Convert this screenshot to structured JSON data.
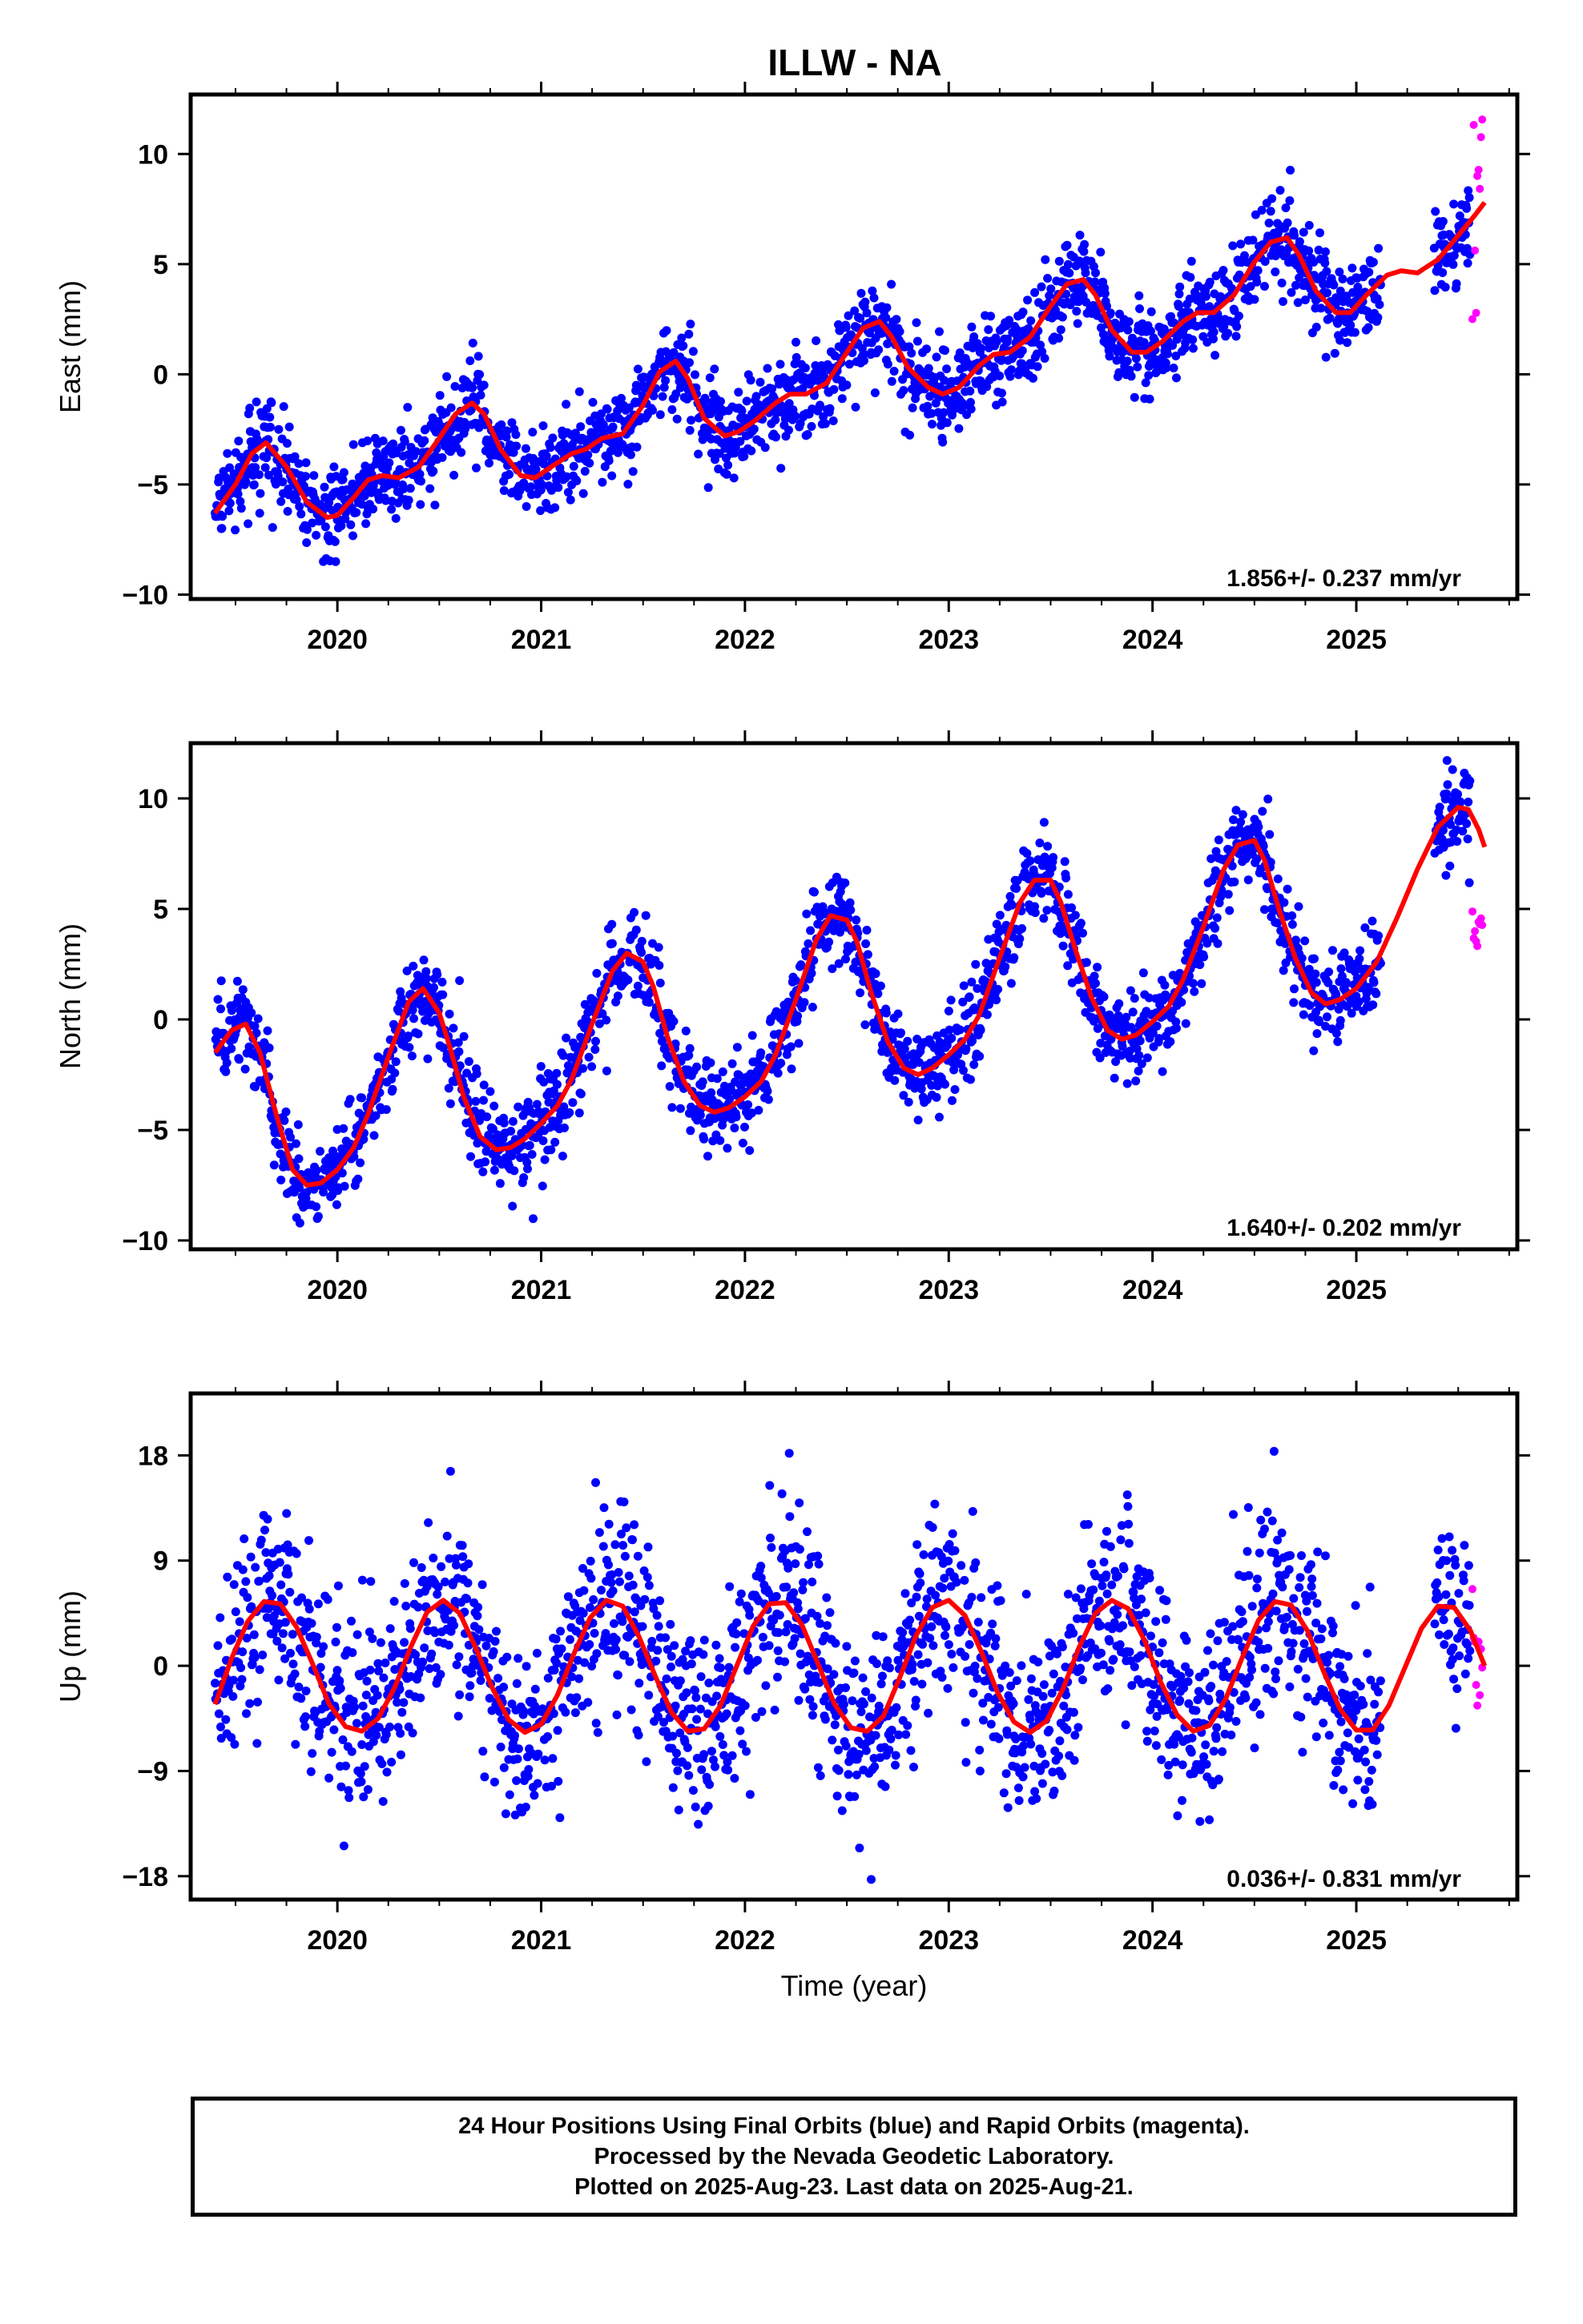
{
  "title": "ILLW - NA",
  "colors": {
    "final": "#0000ff",
    "rapid": "#ff00ff",
    "model": "#ff0000",
    "axis": "#000000"
  },
  "x_axis": {
    "label": "Time (year)",
    "ticks": [
      "2020",
      "2021",
      "2022",
      "2023",
      "2024",
      "2025"
    ]
  },
  "footer": {
    "line1": "24 Hour Positions Using Final Orbits (blue) and Rapid Orbits (magenta).",
    "line2": "Processed by the Nevada Geodetic Laboratory.",
    "line3": "Plotted on 2025-Aug-23. Last data on 2025-Aug-21."
  },
  "chart_data": [
    {
      "type": "scatter",
      "ylabel": "East (mm)",
      "xlim": [
        2019.28,
        2025.79
      ],
      "ylim": [
        -10.2,
        12.7
      ],
      "yticks": [
        -10,
        -5,
        0,
        5,
        10
      ],
      "ytick_labels": [
        "−10",
        "−5",
        "0",
        "5",
        "10"
      ],
      "rate_label": "1.856+/- 0.237 mm/yr",
      "model": {
        "x": [
          2019.4,
          2019.5,
          2019.58,
          2019.65,
          2019.75,
          2019.85,
          2019.95,
          2020.0,
          2020.08,
          2020.15,
          2020.22,
          2020.3,
          2020.4,
          2020.5,
          2020.58,
          2020.66,
          2020.72,
          2020.8,
          2020.9,
          2020.97,
          2021.05,
          2021.15,
          2021.22,
          2021.3,
          2021.4,
          2021.5,
          2021.58,
          2021.66,
          2021.72,
          2021.8,
          2021.9,
          2021.97,
          2022.05,
          2022.15,
          2022.22,
          2022.3,
          2022.4,
          2022.5,
          2022.58,
          2022.66,
          2022.72,
          2022.8,
          2022.9,
          2022.97,
          2023.05,
          2023.15,
          2023.22,
          2023.3,
          2023.4,
          2023.5,
          2023.58,
          2023.66,
          2023.72,
          2023.8,
          2023.9,
          2023.97,
          2024.05,
          2024.15,
          2024.22,
          2024.3,
          2024.4,
          2024.5,
          2024.58,
          2024.66,
          2024.72,
          2024.8,
          2024.9,
          2024.97,
          2025.05,
          2025.15,
          2025.22,
          2025.3,
          2025.4,
          2025.5,
          2025.58,
          2025.63
        ],
        "y": [
          -6.3,
          -5.0,
          -3.6,
          -3.1,
          -4.2,
          -5.8,
          -6.5,
          -6.4,
          -5.6,
          -4.8,
          -4.6,
          -4.7,
          -4.2,
          -2.9,
          -1.8,
          -1.3,
          -1.8,
          -3.4,
          -4.6,
          -4.7,
          -4.2,
          -3.6,
          -3.4,
          -2.9,
          -2.7,
          -1.4,
          0.1,
          0.6,
          -0.2,
          -2.0,
          -2.8,
          -2.6,
          -2.1,
          -1.3,
          -0.9,
          -0.9,
          -0.4,
          1.0,
          2.1,
          2.4,
          1.7,
          0.3,
          -0.6,
          -0.9,
          -0.6,
          0.4,
          0.9,
          1.0,
          1.7,
          3.1,
          4.1,
          4.3,
          3.6,
          2.0,
          1.0,
          1.0,
          1.5,
          2.4,
          2.8,
          2.8,
          3.6,
          5.1,
          6.0,
          6.2,
          5.4,
          3.8,
          2.8,
          2.8,
          3.6,
          4.5,
          4.7,
          4.6,
          5.2,
          6.3,
          7.2,
          7.8
        ]
      }
    },
    {
      "type": "scatter",
      "ylabel": "North (mm)",
      "xlim": [
        2019.28,
        2025.79
      ],
      "ylim": [
        -10.4,
        12.5
      ],
      "yticks": [
        -10,
        -5,
        0,
        5,
        10
      ],
      "ytick_labels": [
        "−10",
        "−5",
        "0",
        "5",
        "10"
      ],
      "rate_label": "1.640+/- 0.202 mm/yr",
      "model": {
        "x": [
          2019.4,
          2019.48,
          2019.55,
          2019.62,
          2019.7,
          2019.78,
          2019.85,
          2019.92,
          2020.0,
          2020.08,
          2020.15,
          2020.25,
          2020.35,
          2020.42,
          2020.5,
          2020.55,
          2020.62,
          2020.7,
          2020.78,
          2020.85,
          2020.92,
          2021.0,
          2021.08,
          2021.15,
          2021.25,
          2021.35,
          2021.42,
          2021.5,
          2021.55,
          2021.62,
          2021.7,
          2021.78,
          2021.85,
          2021.92,
          2022.0,
          2022.08,
          2022.15,
          2022.25,
          2022.35,
          2022.42,
          2022.5,
          2022.55,
          2022.62,
          2022.7,
          2022.78,
          2022.85,
          2022.92,
          2023.0,
          2023.08,
          2023.15,
          2023.25,
          2023.35,
          2023.42,
          2023.5,
          2023.55,
          2023.62,
          2023.7,
          2023.78,
          2023.85,
          2023.92,
          2024.0,
          2024.08,
          2024.15,
          2024.25,
          2024.35,
          2024.42,
          2024.5,
          2024.55,
          2024.62,
          2024.7,
          2024.78,
          2024.85,
          2024.92,
          2025.0,
          2025.1,
          2025.2,
          2025.3,
          2025.4,
          2025.5,
          2025.55,
          2025.6,
          2025.63
        ],
        "y": [
          -1.5,
          -0.5,
          -0.2,
          -1.5,
          -4.3,
          -6.8,
          -7.5,
          -7.4,
          -6.8,
          -5.8,
          -4.3,
          -1.7,
          0.8,
          1.4,
          0.3,
          -1.2,
          -3.5,
          -5.3,
          -5.9,
          -5.8,
          -5.4,
          -4.7,
          -3.9,
          -2.7,
          -0.2,
          2.2,
          3.0,
          2.6,
          1.5,
          -0.8,
          -2.8,
          -3.9,
          -4.2,
          -4.0,
          -3.5,
          -2.8,
          -1.6,
          0.9,
          3.6,
          4.7,
          4.5,
          3.5,
          1.2,
          -1.0,
          -2.2,
          -2.5,
          -2.2,
          -1.6,
          -0.9,
          0.2,
          2.8,
          5.3,
          6.3,
          6.3,
          5.3,
          3.2,
          1.0,
          -0.5,
          -0.9,
          -0.7,
          -0.1,
          0.6,
          1.8,
          4.2,
          6.8,
          7.9,
          8.1,
          7.2,
          5.0,
          2.8,
          1.2,
          0.7,
          0.9,
          1.4,
          2.6,
          4.6,
          6.8,
          8.7,
          9.6,
          9.5,
          8.6,
          7.8
        ]
      }
    },
    {
      "type": "scatter",
      "ylabel": "Up (mm)",
      "xlim": [
        2019.28,
        2025.79
      ],
      "ylim": [
        -20.0,
        23.3
      ],
      "yticks": [
        -18,
        -9,
        0,
        9,
        18
      ],
      "ytick_labels": [
        "−18",
        "−9",
        "0",
        "9",
        "18"
      ],
      "rate_label": "0.036+/- 0.831 mm/yr",
      "model": {
        "x": [
          2019.4,
          2019.48,
          2019.56,
          2019.64,
          2019.72,
          2019.8,
          2019.88,
          2019.96,
          2020.04,
          2020.12,
          2020.2,
          2020.28,
          2020.36,
          2020.44,
          2020.52,
          2020.6,
          2020.68,
          2020.76,
          2020.84,
          2020.92,
          2021.0,
          2021.08,
          2021.16,
          2021.24,
          2021.32,
          2021.4,
          2021.48,
          2021.56,
          2021.64,
          2021.72,
          2021.8,
          2021.88,
          2021.96,
          2022.04,
          2022.12,
          2022.2,
          2022.28,
          2022.36,
          2022.44,
          2022.52,
          2022.6,
          2022.68,
          2022.76,
          2022.84,
          2022.92,
          2023.0,
          2023.08,
          2023.16,
          2023.24,
          2023.32,
          2023.4,
          2023.48,
          2023.56,
          2023.64,
          2023.72,
          2023.8,
          2023.88,
          2023.96,
          2024.04,
          2024.12,
          2024.2,
          2024.28,
          2024.36,
          2024.44,
          2024.52,
          2024.6,
          2024.68,
          2024.76,
          2024.84,
          2024.92,
          2025.0,
          2025.08,
          2025.16,
          2025.24,
          2025.32,
          2025.4,
          2025.48,
          2025.56,
          2025.63
        ],
        "y": [
          -3.3,
          0.6,
          3.8,
          5.5,
          5.3,
          3.3,
          0.1,
          -3.3,
          -5.2,
          -5.6,
          -4.5,
          -1.9,
          1.6,
          4.6,
          5.6,
          4.5,
          1.5,
          -1.9,
          -4.6,
          -5.7,
          -5.0,
          -2.5,
          1.0,
          4.1,
          5.6,
          5.1,
          2.5,
          -0.9,
          -4.0,
          -5.6,
          -5.4,
          -3.4,
          0.0,
          3.4,
          5.3,
          5.4,
          3.5,
          0.1,
          -3.3,
          -5.3,
          -5.6,
          -4.3,
          -1.0,
          2.6,
          5.0,
          5.6,
          4.3,
          1.2,
          -2.3,
          -4.8,
          -5.7,
          -4.7,
          -2.0,
          1.6,
          4.5,
          5.6,
          4.9,
          2.2,
          -1.4,
          -4.2,
          -5.6,
          -5.1,
          -2.8,
          0.7,
          3.9,
          5.5,
          5.2,
          3.0,
          -0.5,
          -3.7,
          -5.5,
          -5.5,
          -3.4,
          -0.1,
          3.2,
          5.1,
          5.0,
          3.0,
          0.0
        ]
      }
    }
  ]
}
